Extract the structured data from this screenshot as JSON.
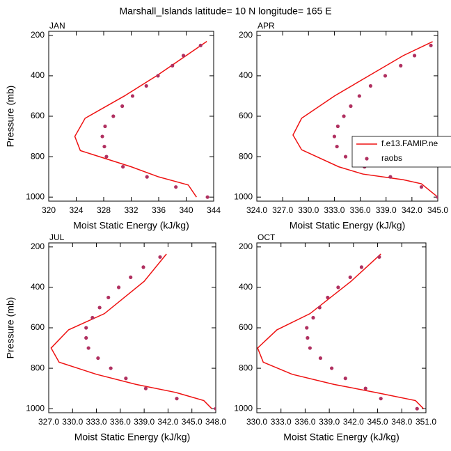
{
  "title": "Marshall_Islands  latitude= 10 N longitude= 165 E",
  "chart_data": [
    {
      "type": "line",
      "title": "JAN",
      "x_label": "Moist Static Energy (kJ/kg)",
      "y_label": "Pressure (mb)",
      "xlim": [
        320,
        344
      ],
      "xticks": [
        320,
        324,
        328,
        332,
        336,
        340,
        344
      ],
      "ylim": [
        1020,
        180
      ],
      "yticks": [
        200,
        400,
        600,
        800,
        1000
      ],
      "series": [
        {
          "name": "f.e13.FAMIP.ne",
          "color": "#ee1111",
          "style": "line",
          "pressure": [
            230,
            300,
            400,
            500,
            610,
            700,
            770,
            850,
            900,
            940,
            1000
          ],
          "values": [
            343,
            340,
            335.7,
            331,
            325.3,
            323.8,
            324.6,
            332,
            336,
            340.3,
            341.5
          ]
        },
        {
          "name": "raobs",
          "color": "#b03060",
          "style": "marker",
          "pressure": [
            250,
            300,
            350,
            400,
            450,
            500,
            550,
            600,
            650,
            700,
            750,
            800,
            850,
            900,
            950,
            1000
          ],
          "values": [
            342.1,
            339.6,
            338,
            335.9,
            334.2,
            332.2,
            330.7,
            329.4,
            328.2,
            327.8,
            328.1,
            328.4,
            330.8,
            334.3,
            338.5,
            343.1
          ]
        }
      ]
    },
    {
      "type": "line",
      "title": "APR",
      "x_label": "Moist Static Energy (kJ/kg)",
      "legend": true,
      "xlim": [
        324,
        345
      ],
      "xticks": [
        {
          "value": 324,
          "label": "324.0"
        },
        {
          "value": 327,
          "label": "327.0"
        },
        {
          "value": 330,
          "label": "330.0"
        },
        {
          "value": 333,
          "label": "333.0"
        },
        {
          "value": 336,
          "label": "336.0"
        },
        {
          "value": 339,
          "label": "339.0"
        },
        {
          "value": 342,
          "label": "342.0"
        },
        {
          "value": 345,
          "label": "345.0"
        }
      ],
      "ylim": [
        1020,
        180
      ],
      "yticks": [
        200,
        400,
        600,
        800,
        1000
      ],
      "series": [
        {
          "name": "f.e13.FAMIP.ne",
          "color": "#ee1111",
          "style": "line",
          "pressure": [
            231,
            300,
            400,
            500,
            610,
            693,
            766,
            850,
            886,
            914,
            934,
            1000
          ],
          "values": [
            344.4,
            341,
            337,
            333,
            329.2,
            328.2,
            329.2,
            333.5,
            336.3,
            341,
            343.1,
            345
          ]
        },
        {
          "name": "raobs",
          "color": "#b03060",
          "style": "marker",
          "pressure": [
            250,
            300,
            350,
            400,
            450,
            500,
            550,
            600,
            650,
            700,
            750,
            800,
            850,
            900,
            950,
            1000
          ],
          "values": [
            344.2,
            342.3,
            340.7,
            338.9,
            337.2,
            335.9,
            334.9,
            334.1,
            333.4,
            333,
            333.3,
            334.3,
            336.5,
            339.5,
            343.1,
            345
          ]
        }
      ]
    },
    {
      "type": "line",
      "title": "JUL",
      "x_label": "Moist Static Energy (kJ/kg)",
      "y_label": "Pressure (mb)",
      "xlim": [
        327,
        348
      ],
      "xticks": [
        {
          "value": 327,
          "label": "327.0"
        },
        {
          "value": 330,
          "label": "330.0"
        },
        {
          "value": 333,
          "label": "333.0"
        },
        {
          "value": 336,
          "label": "336.0"
        },
        {
          "value": 339,
          "label": "339.0"
        },
        {
          "value": 342,
          "label": "342.0"
        },
        {
          "value": 345,
          "label": "345.0"
        },
        {
          "value": 348,
          "label": "348.0"
        }
      ],
      "ylim": [
        1020,
        180
      ],
      "yticks": [
        200,
        400,
        600,
        800,
        1000
      ],
      "series": [
        {
          "name": "f.e13.FAMIP.ne",
          "color": "#ee1111",
          "style": "line",
          "pressure": [
            235,
            370,
            530,
            610,
            700,
            770,
            830,
            880,
            920,
            960,
            1000
          ],
          "values": [
            341.8,
            339,
            334,
            329.5,
            327.3,
            328.3,
            333,
            338,
            343,
            346.5,
            347.5
          ]
        },
        {
          "name": "raobs",
          "color": "#b03060",
          "style": "marker",
          "pressure": [
            250,
            300,
            350,
            400,
            450,
            500,
            550,
            600,
            650,
            700,
            750,
            800,
            850,
            900,
            950,
            1000
          ],
          "values": [
            341,
            338.9,
            337.3,
            335.8,
            334.5,
            333.4,
            332.5,
            331.7,
            331.7,
            332,
            333.2,
            334.8,
            336.7,
            339.2,
            343.1,
            348
          ]
        }
      ]
    },
    {
      "type": "line",
      "title": "OCT",
      "x_label": "Moist Static Energy (kJ/kg)",
      "xlim": [
        330,
        351
      ],
      "xticks": [
        {
          "value": 330,
          "label": "330.0"
        },
        {
          "value": 333,
          "label": "333.0"
        },
        {
          "value": 336,
          "label": "336.0"
        },
        {
          "value": 339,
          "label": "339.0"
        },
        {
          "value": 342,
          "label": "342.0"
        },
        {
          "value": 345,
          "label": "345.0"
        },
        {
          "value": 348,
          "label": "348.0"
        },
        {
          "value": 351,
          "label": "351.0"
        }
      ],
      "ylim": [
        1020,
        180
      ],
      "yticks": [
        200,
        400,
        600,
        800,
        1000
      ],
      "series": [
        {
          "name": "f.e13.FAMIP.ne",
          "color": "#ee1111",
          "style": "line",
          "pressure": [
            235,
            370,
            530,
            610,
            700,
            770,
            830,
            880,
            920,
            960,
            1000
          ],
          "values": [
            345.4,
            341.7,
            336.6,
            332.5,
            330.1,
            330.8,
            334.4,
            339.6,
            344.8,
            349.7,
            350.7
          ]
        },
        {
          "name": "raobs",
          "color": "#b03060",
          "style": "marker",
          "pressure": [
            250,
            300,
            350,
            400,
            450,
            500,
            550,
            600,
            650,
            700,
            750,
            800,
            850,
            900,
            950,
            1000
          ],
          "values": [
            345.2,
            343,
            341.6,
            340.1,
            338.8,
            337.8,
            337,
            336.2,
            336.3,
            336.6,
            337.9,
            339.3,
            341,
            343.5,
            345.4,
            349.9
          ]
        }
      ]
    }
  ]
}
